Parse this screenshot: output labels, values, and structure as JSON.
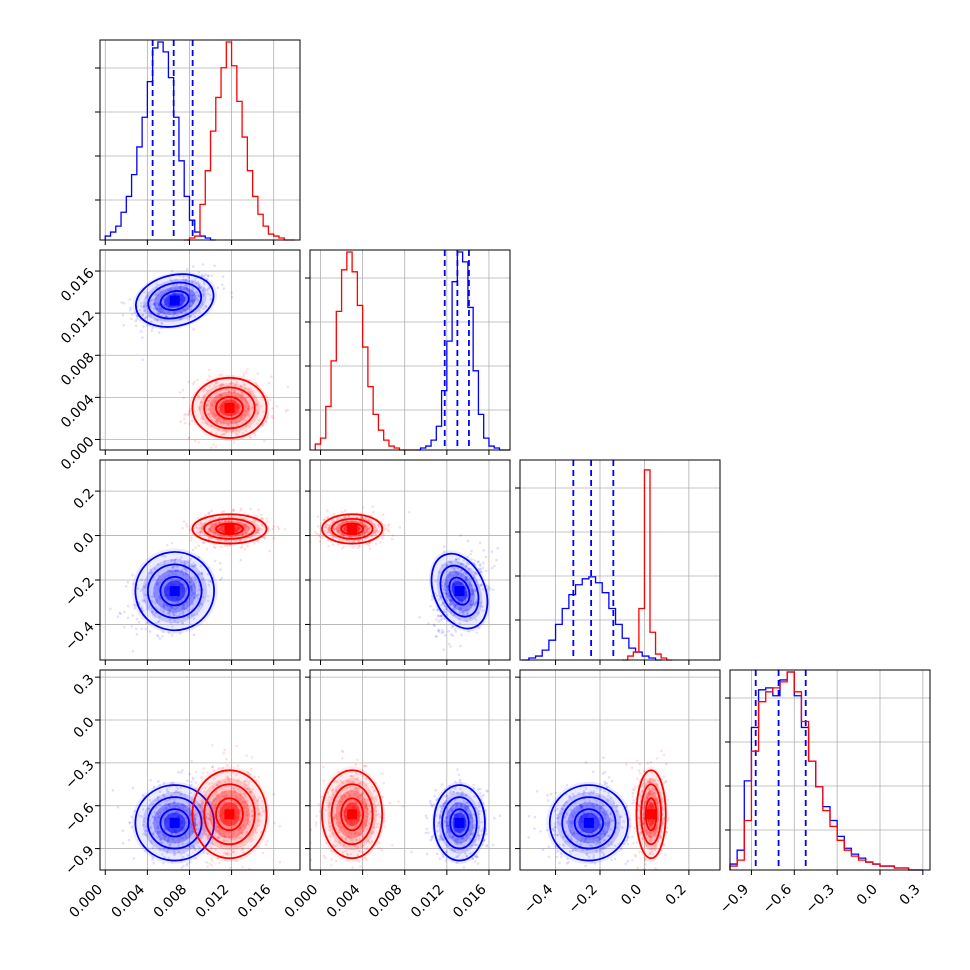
{
  "colors": {
    "series_a": "#0000ff",
    "series_b": "#ff0000",
    "grid": "#b0b0b0",
    "axis": "#000000"
  },
  "chart_data": {
    "type": "corner",
    "grid": true,
    "variables": [
      {
        "ticks": [
          0.0,
          0.004,
          0.008,
          0.012,
          0.016
        ],
        "tick_labels": [
          "0.000",
          "0.004",
          "0.008",
          "0.012",
          "0.016"
        ]
      },
      {
        "ticks": [
          0.0,
          0.004,
          0.008,
          0.012,
          0.016
        ],
        "tick_labels": [
          "0.000",
          "0.004",
          "0.008",
          "0.012",
          "0.016"
        ]
      },
      {
        "ticks": [
          -0.4,
          -0.2,
          0.0,
          0.2
        ],
        "tick_labels": [
          "−0.4",
          "−0.2",
          "0.0",
          "0.2"
        ]
      },
      {
        "ticks": [
          -0.9,
          -0.6,
          -0.3,
          0.0,
          0.3
        ],
        "tick_labels": [
          "−0.9",
          "−0.6",
          "−0.3",
          "0.0",
          "0.3"
        ]
      }
    ],
    "series": [
      {
        "color_key": "series_a",
        "quantiles": [
          [
            0.0045,
            0.0065,
            0.0083
          ],
          [
            0.0118,
            0.013,
            0.0141
          ],
          [
            -0.32,
            -0.24,
            -0.14
          ],
          [
            -0.87,
            -0.71,
            -0.52
          ]
        ],
        "means": [
          0.0066,
          0.0132,
          -0.25,
          -0.72
        ],
        "sds": [
          0.0017,
          0.0011,
          0.08,
          0.12
        ],
        "histograms": [
          {
            "edges": [
              0.0,
              0.0005,
              0.001,
              0.0015,
              0.002,
              0.0025,
              0.003,
              0.0035,
              0.004,
              0.0045,
              0.005,
              0.0055,
              0.006,
              0.0065,
              0.007,
              0.0075,
              0.008,
              0.0085,
              0.009,
              0.0095,
              0.01,
              0.0105
            ],
            "counts": [
              0.02,
              0.04,
              0.07,
              0.14,
              0.22,
              0.33,
              0.47,
              0.62,
              0.8,
              0.97,
              1.0,
              0.95,
              0.82,
              0.62,
              0.4,
              0.22,
              0.1,
              0.04,
              0.02,
              0.01,
              0.0
            ]
          },
          {
            "edges": [
              0.009,
              0.0095,
              0.01,
              0.0105,
              0.011,
              0.0115,
              0.012,
              0.0125,
              0.013,
              0.0135,
              0.014,
              0.0145,
              0.015,
              0.0155,
              0.016,
              0.0165,
              0.017,
              0.0175,
              0.018
            ],
            "counts": [
              0.0,
              0.01,
              0.02,
              0.05,
              0.12,
              0.3,
              0.55,
              0.85,
              1.0,
              0.95,
              0.72,
              0.4,
              0.18,
              0.06,
              0.02,
              0.01,
              0.0,
              0.0
            ]
          },
          {
            "edges": [
              -0.55,
              -0.52,
              -0.49,
              -0.46,
              -0.43,
              -0.4,
              -0.37,
              -0.34,
              -0.31,
              -0.28,
              -0.25,
              -0.22,
              -0.19,
              -0.16,
              -0.13,
              -0.1,
              -0.07,
              -0.04,
              -0.01,
              0.02,
              0.05,
              0.08
            ],
            "counts": [
              0.0,
              0.01,
              0.02,
              0.05,
              0.1,
              0.18,
              0.26,
              0.33,
              0.38,
              0.41,
              0.42,
              0.39,
              0.34,
              0.26,
              0.18,
              0.11,
              0.06,
              0.04,
              0.02,
              0.01,
              0.0
            ]
          },
          {
            "edges": [
              -1.05,
              -1.0,
              -0.95,
              -0.9,
              -0.85,
              -0.8,
              -0.75,
              -0.7,
              -0.65,
              -0.6,
              -0.55,
              -0.5,
              -0.45,
              -0.4,
              -0.35,
              -0.3,
              -0.25,
              -0.2,
              -0.15,
              -0.1,
              -0.05,
              0.0,
              0.1,
              0.2,
              0.3
            ],
            "counts": [
              0.03,
              0.1,
              0.45,
              0.72,
              0.91,
              0.92,
              0.88,
              0.96,
              1.0,
              0.88,
              0.72,
              0.55,
              0.42,
              0.32,
              0.25,
              0.17,
              0.11,
              0.08,
              0.06,
              0.04,
              0.03,
              0.02,
              0.01,
              0.0
            ]
          }
        ]
      },
      {
        "color_key": "series_b",
        "quantiles": null,
        "means": [
          0.0118,
          0.003,
          0.03,
          -0.66
        ],
        "sds": [
          0.0016,
          0.0013,
          0.03,
          0.14
        ],
        "histograms": [
          {
            "edges": [
              0.0075,
              0.008,
              0.0085,
              0.009,
              0.0095,
              0.01,
              0.0105,
              0.011,
              0.0115,
              0.012,
              0.0125,
              0.013,
              0.0135,
              0.014,
              0.0145,
              0.015,
              0.0155,
              0.016,
              0.0165,
              0.017,
              0.0175,
              0.018
            ],
            "counts": [
              0.0,
              0.01,
              0.02,
              0.18,
              0.35,
              0.55,
              0.72,
              0.87,
              1.0,
              0.88,
              0.7,
              0.52,
              0.35,
              0.22,
              0.13,
              0.07,
              0.03,
              0.02,
              0.01,
              0.0,
              0.0
            ]
          },
          {
            "edges": [
              -0.0005,
              0.0,
              0.0005,
              0.001,
              0.0015,
              0.002,
              0.0025,
              0.003,
              0.0035,
              0.004,
              0.0045,
              0.005,
              0.0055,
              0.006,
              0.0065,
              0.007,
              0.0075,
              0.008,
              0.0085,
              0.009
            ],
            "counts": [
              0.03,
              0.06,
              0.22,
              0.45,
              0.7,
              0.91,
              1.0,
              0.9,
              0.73,
              0.52,
              0.32,
              0.18,
              0.1,
              0.05,
              0.02,
              0.01,
              0.0,
              0.0,
              0.0
            ]
          },
          {
            "edges": [
              -0.1,
              -0.075,
              -0.05,
              -0.025,
              0.0,
              0.025,
              0.05,
              0.075,
              0.1,
              0.125
            ],
            "counts": [
              0.0,
              0.02,
              0.04,
              0.26,
              0.96,
              0.14,
              0.03,
              0.01,
              0.0
            ]
          },
          {
            "edges": [
              -1.05,
              -1.0,
              -0.95,
              -0.9,
              -0.85,
              -0.8,
              -0.75,
              -0.7,
              -0.65,
              -0.6,
              -0.55,
              -0.5,
              -0.45,
              -0.4,
              -0.35,
              -0.3,
              -0.25,
              -0.2,
              -0.15,
              -0.1,
              -0.05,
              0.0,
              0.1,
              0.2,
              0.3
            ],
            "counts": [
              0.02,
              0.05,
              0.25,
              0.6,
              0.85,
              0.9,
              0.92,
              0.95,
              1.0,
              0.9,
              0.75,
              0.55,
              0.42,
              0.3,
              0.22,
              0.15,
              0.1,
              0.07,
              0.05,
              0.04,
              0.03,
              0.02,
              0.01,
              0.0
            ]
          }
        ]
      }
    ]
  }
}
